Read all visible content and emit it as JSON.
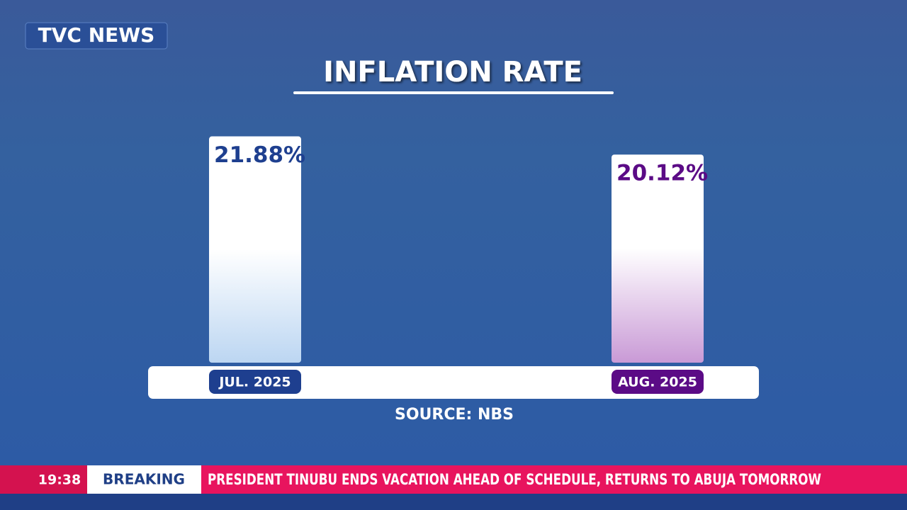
{
  "logo": "TVC NEWS",
  "chart_data": {
    "type": "bar",
    "title": "INFLATION RATE",
    "categories": [
      "JUL. 2025",
      "AUG. 2025"
    ],
    "values": [
      21.88,
      20.12
    ],
    "value_labels": [
      "21.88%",
      "20.12%"
    ],
    "colors": [
      "#1e3f8f",
      "#5b0b86"
    ],
    "source": "SOURCE: NBS"
  },
  "ticker": {
    "time": "19:38",
    "label": "BREAKING",
    "headline": "PRESIDENT TINUBU ENDS VACATION AHEAD OF SCHEDULE, RETURNS TO ABUJA TOMORROW"
  }
}
